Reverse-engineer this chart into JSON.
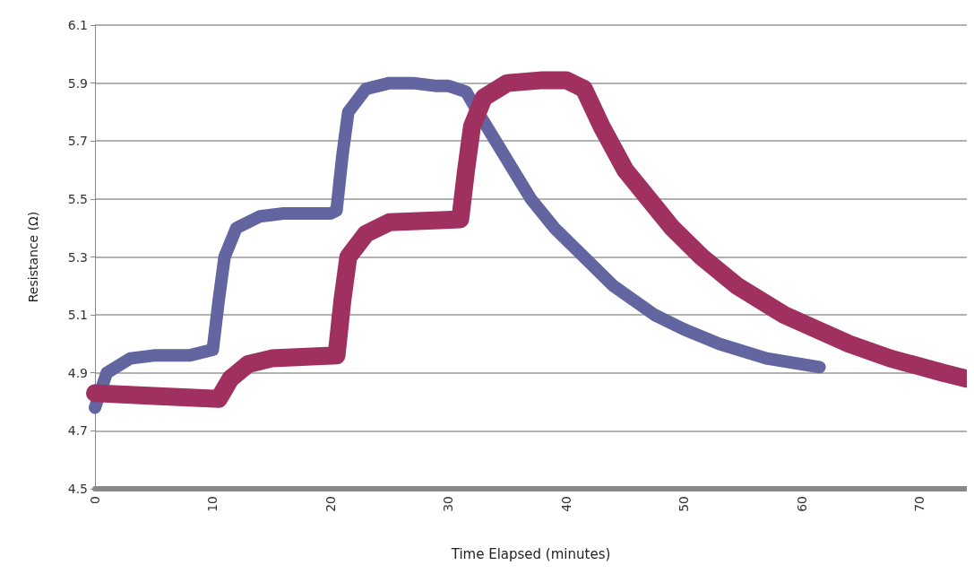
{
  "chart_data": {
    "type": "line",
    "xlabel": "Time Elapsed (minutes)",
    "ylabel": "Resistance (Ω)",
    "xlim": [
      0,
      74
    ],
    "xticks": [
      0,
      10,
      20,
      30,
      40,
      50,
      60,
      70
    ],
    "ylim": [
      4.5,
      6.1
    ],
    "yticks": [
      4.5,
      4.7,
      4.9,
      5.1,
      5.3,
      5.5,
      5.7,
      5.9,
      6.1
    ],
    "grid": "y",
    "marker": "none",
    "line_style": "solid",
    "series": [
      {
        "color": "#62659f",
        "x": [
          0,
          1,
          3,
          5,
          8,
          10,
          10.5,
          11,
          12,
          14,
          16,
          18,
          20,
          20.5,
          21,
          21.5,
          23,
          25,
          27,
          29,
          30,
          31.5,
          32.5,
          34,
          35.5,
          37,
          39,
          41.5,
          44,
          47.5,
          50,
          53,
          57,
          61.5
        ],
        "values": [
          4.78,
          4.9,
          4.95,
          4.96,
          4.96,
          4.98,
          5.15,
          5.3,
          5.4,
          5.44,
          5.45,
          5.45,
          5.45,
          5.46,
          5.65,
          5.8,
          5.88,
          5.9,
          5.9,
          5.89,
          5.89,
          5.87,
          5.8,
          5.7,
          5.6,
          5.5,
          5.4,
          5.3,
          5.2,
          5.1,
          5.05,
          5.0,
          4.95,
          4.92
        ]
      },
      {
        "color": "#a0305f",
        "x": [
          0,
          5,
          10.5,
          11.5,
          13,
          15,
          20.5,
          21,
          21.5,
          23,
          25,
          31,
          31.5,
          32,
          33,
          35,
          38,
          40,
          41.5,
          43,
          45,
          47,
          49,
          51.5,
          54.5,
          58.5,
          64,
          67.5,
          72,
          74
        ],
        "values": [
          4.83,
          4.82,
          4.81,
          4.88,
          4.93,
          4.95,
          4.96,
          5.15,
          5.3,
          5.38,
          5.42,
          5.43,
          5.6,
          5.75,
          5.85,
          5.9,
          5.91,
          5.91,
          5.88,
          5.75,
          5.6,
          5.5,
          5.4,
          5.3,
          5.2,
          5.1,
          5.0,
          4.95,
          4.9,
          4.88
        ]
      }
    ]
  }
}
